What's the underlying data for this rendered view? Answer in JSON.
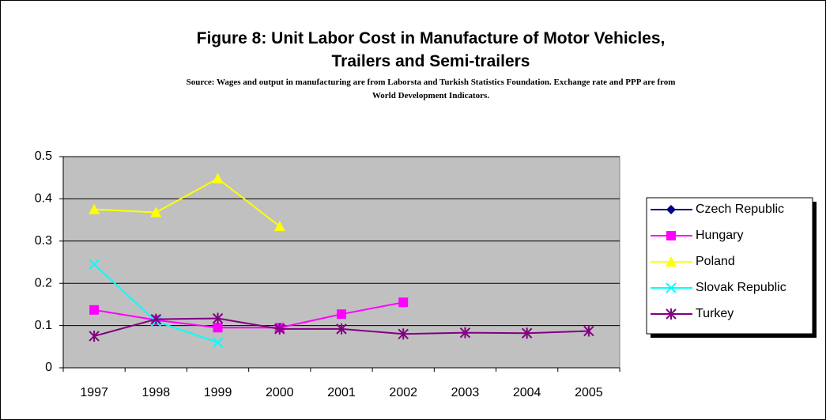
{
  "chart_data": {
    "type": "line",
    "title": "Figure 8: Unit Labor Cost in Manufacture of Motor Vehicles, Trailers and Semi-trailers",
    "subtitle": "Source: Wages and output in manufacturing are from Laborsta and Turkish Statistics Foundation. Exchange rate and PPP are from World Development Indicators.",
    "categories": [
      "1997",
      "1998",
      "1999",
      "2000",
      "2001",
      "2002",
      "2003",
      "2004",
      "2005"
    ],
    "series": [
      {
        "name": "Czech Republic",
        "color": "#000080",
        "marker": "diamond",
        "values": [
          null,
          null,
          null,
          null,
          null,
          null,
          null,
          null,
          null
        ]
      },
      {
        "name": "Hungary",
        "color": "#ff00ff",
        "marker": "square",
        "values": [
          0.137,
          0.113,
          0.095,
          0.095,
          0.127,
          0.155,
          null,
          null,
          null
        ]
      },
      {
        "name": "Poland",
        "color": "#ffff00",
        "marker": "triangle",
        "values": [
          0.375,
          0.368,
          0.448,
          0.335,
          null,
          null,
          null,
          null,
          null
        ]
      },
      {
        "name": "Slovak Republic",
        "color": "#00ffff",
        "marker": "x",
        "values": [
          0.245,
          0.11,
          0.06,
          null,
          null,
          null,
          null,
          null,
          null
        ]
      },
      {
        "name": "Turkey",
        "color": "#800080",
        "marker": "star",
        "values": [
          0.075,
          0.115,
          0.117,
          0.092,
          0.092,
          0.08,
          0.083,
          0.082,
          0.087
        ]
      }
    ],
    "ylim": [
      0,
      0.5
    ],
    "yticks": [
      0,
      0.1,
      0.2,
      0.3,
      0.4,
      0.5
    ],
    "grid": true,
    "legend": "right"
  }
}
